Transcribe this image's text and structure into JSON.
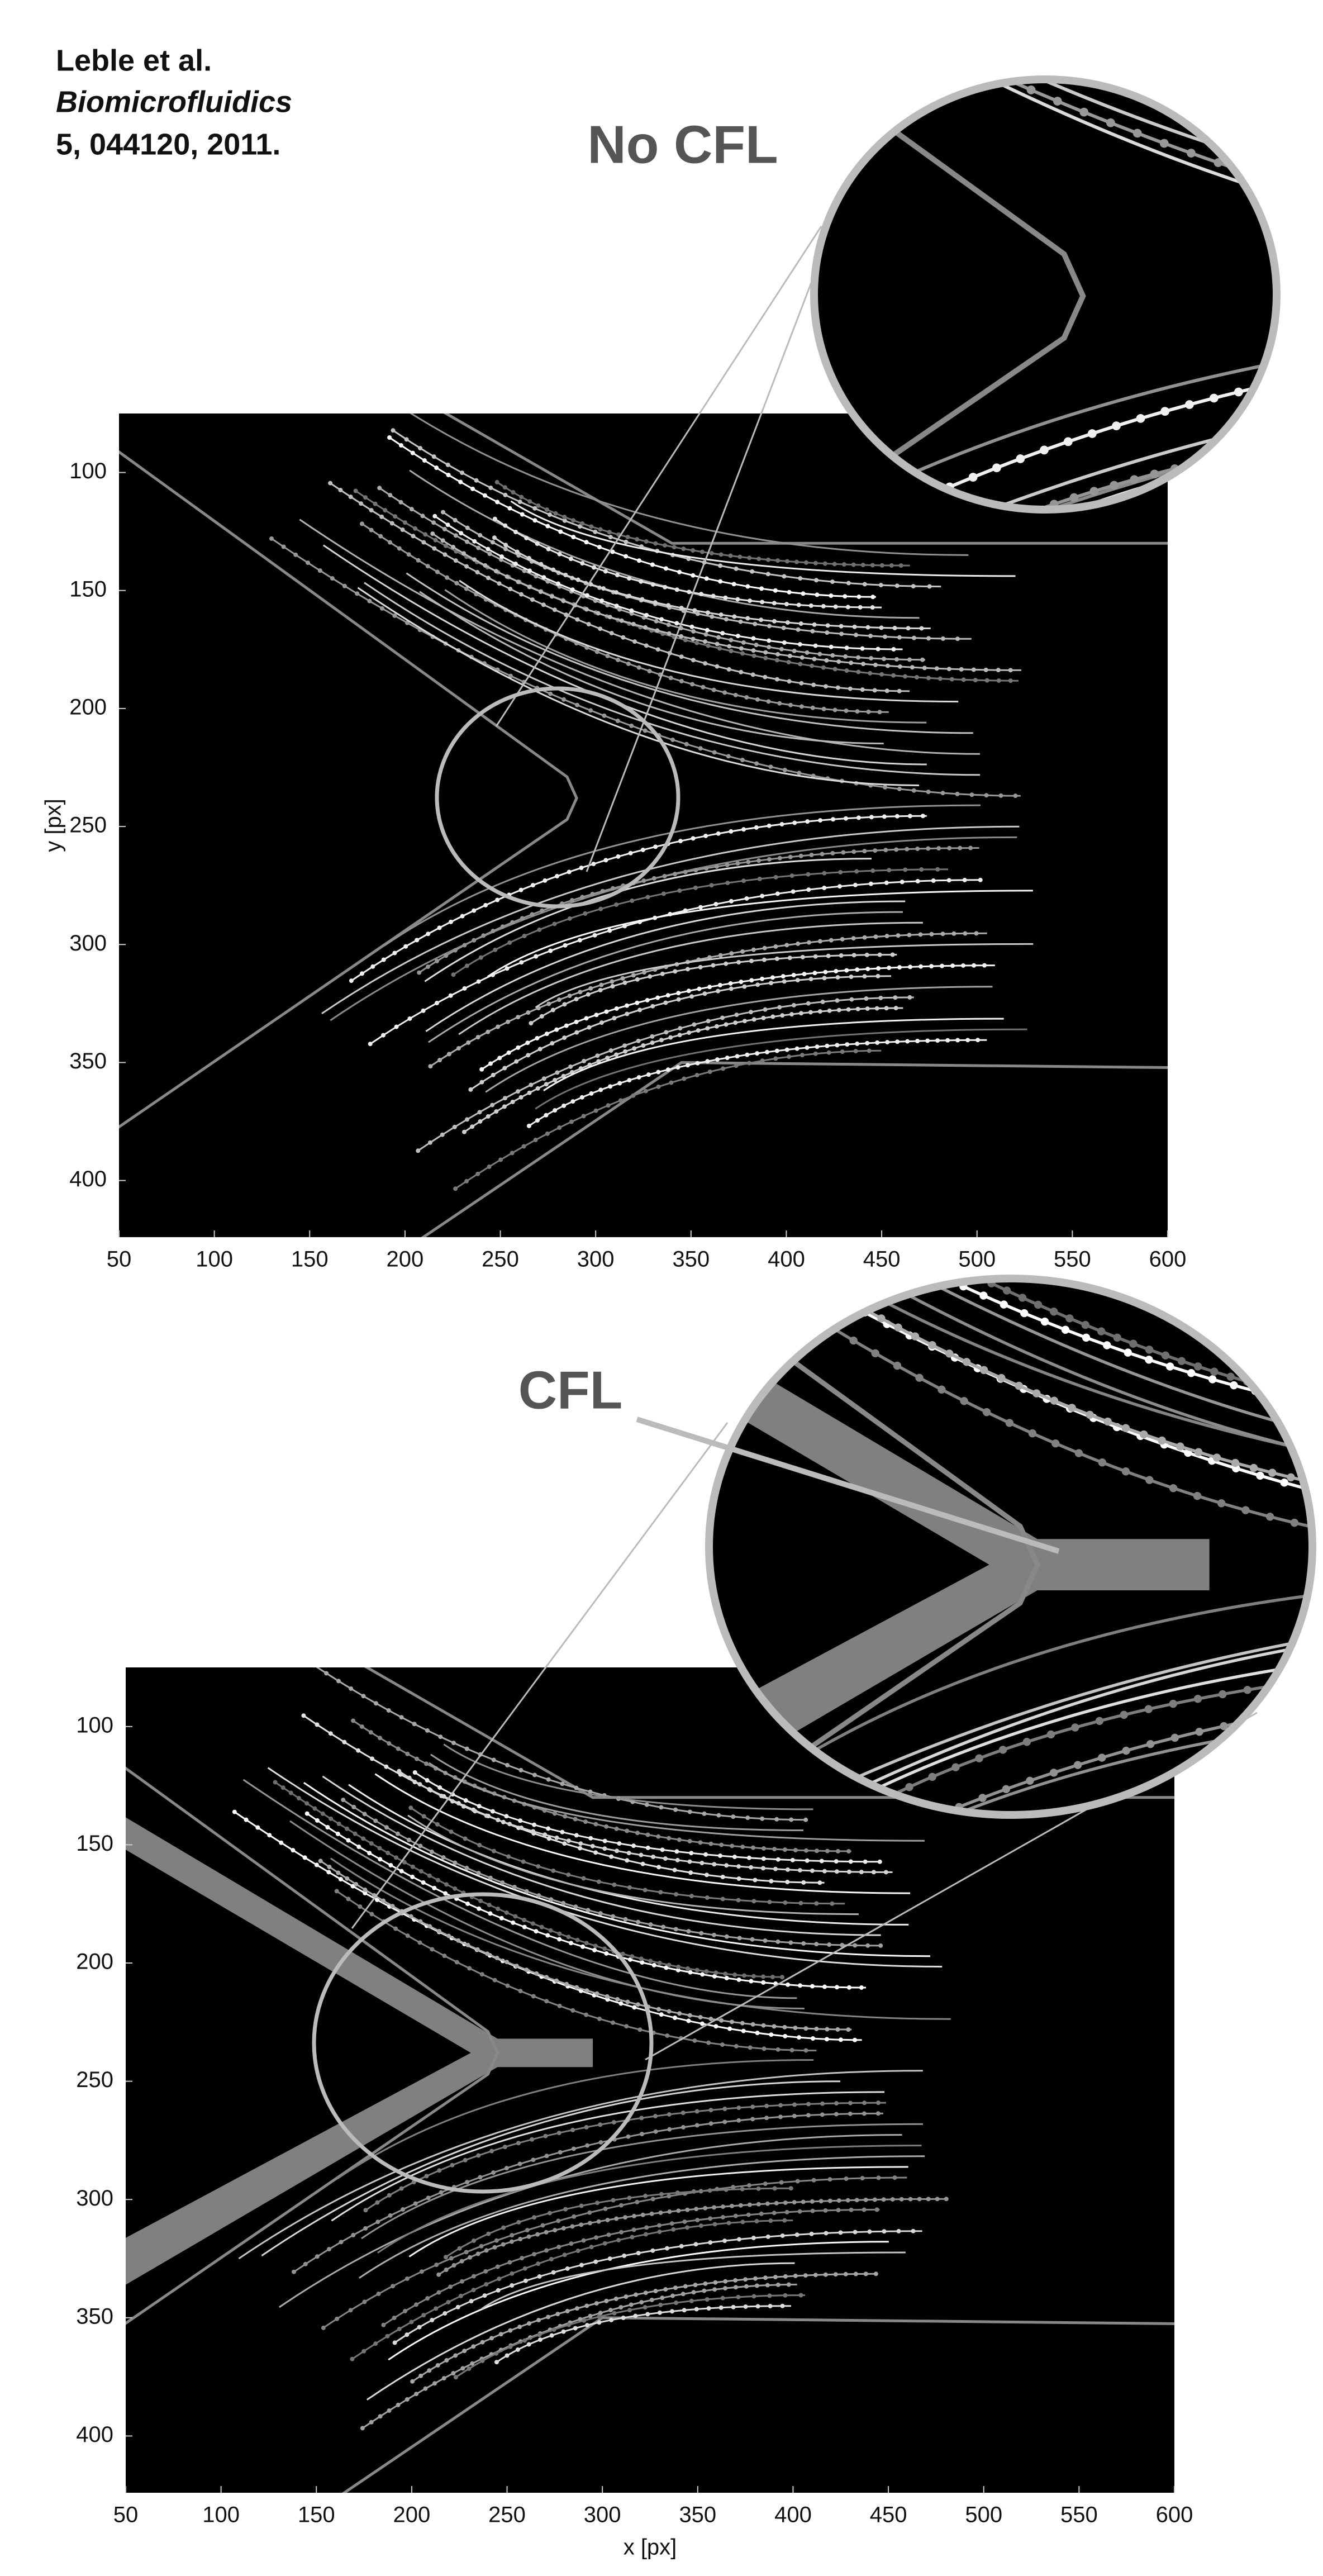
{
  "citation": [
    "Leble et al.",
    "Biomicrofluidics",
    "5, 044120, 2011."
  ],
  "panels": [
    {
      "label": "No CFL",
      "xlim": [
        50,
        600
      ],
      "ylim": [
        75,
        424
      ],
      "xticks": [
        50,
        100,
        150,
        200,
        250,
        300,
        350,
        400,
        450,
        500,
        550,
        600
      ],
      "yticks": [
        100,
        150,
        200,
        250,
        300,
        350,
        400
      ],
      "ylabel": "y [px]"
    },
    {
      "label": "CFL",
      "xlim": [
        50,
        600
      ],
      "ylim": [
        75,
        424
      ],
      "xticks": [
        50,
        100,
        150,
        200,
        250,
        300,
        350,
        400,
        450,
        500,
        550,
        600
      ],
      "yticks": [
        100,
        150,
        200,
        250,
        300,
        350,
        400
      ],
      "xlabel": "x [px]"
    }
  ]
}
